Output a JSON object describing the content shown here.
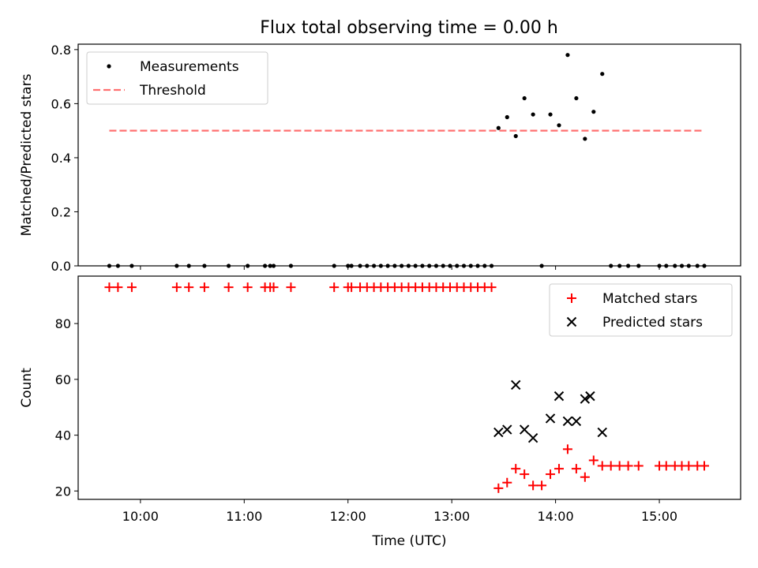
{
  "chart_data": [
    {
      "type": "scatter",
      "title": "Flux total observing time = 0.00 h",
      "xlabel": "",
      "ylabel": "Matched/Predicted stars",
      "xlim": [
        "09:24",
        "15:47"
      ],
      "ylim": [
        0,
        0.82
      ],
      "yticks": [
        "0.0",
        "0.2",
        "0.4",
        "0.6",
        "0.8"
      ],
      "xticks": [
        "10:00",
        "11:00",
        "12:00",
        "13:00",
        "14:00",
        "15:00"
      ],
      "legend": "upper-left",
      "grid": false,
      "series": [
        {
          "name": "Measurements",
          "marker": "dot",
          "color": "#000000",
          "points": [
            [
              "09:42",
              0
            ],
            [
              "09:47",
              0
            ],
            [
              "09:55",
              0
            ],
            [
              "10:21",
              0
            ],
            [
              "10:28",
              0
            ],
            [
              "10:37",
              0
            ],
            [
              "10:51",
              0
            ],
            [
              "11:02",
              0
            ],
            [
              "11:12",
              0
            ],
            [
              "11:15",
              0
            ],
            [
              "11:17",
              0
            ],
            [
              "11:27",
              0
            ],
            [
              "11:52",
              0
            ],
            [
              "12:00",
              0
            ],
            [
              "12:02",
              0
            ],
            [
              "12:07",
              0
            ],
            [
              "12:11",
              0
            ],
            [
              "12:15",
              0
            ],
            [
              "12:19",
              0
            ],
            [
              "12:23",
              0
            ],
            [
              "12:27",
              0
            ],
            [
              "12:31",
              0
            ],
            [
              "12:35",
              0
            ],
            [
              "12:39",
              0
            ],
            [
              "12:43",
              0
            ],
            [
              "12:47",
              0
            ],
            [
              "12:51",
              0
            ],
            [
              "12:55",
              0
            ],
            [
              "12:59",
              0
            ],
            [
              "13:03",
              0
            ],
            [
              "13:07",
              0
            ],
            [
              "13:11",
              0
            ],
            [
              "13:15",
              0
            ],
            [
              "13:19",
              0
            ],
            [
              "13:23",
              0
            ],
            [
              "13:27",
              0.51
            ],
            [
              "13:32",
              0.55
            ],
            [
              "13:37",
              0.48
            ],
            [
              "13:42",
              0.62
            ],
            [
              "13:47",
              0.56
            ],
            [
              "13:52",
              0
            ],
            [
              "13:57",
              0.56
            ],
            [
              "14:02",
              0.52
            ],
            [
              "14:07",
              0.78
            ],
            [
              "14:12",
              0.62
            ],
            [
              "14:17",
              0.47
            ],
            [
              "14:22",
              0.57
            ],
            [
              "14:27",
              0.71
            ],
            [
              "14:32",
              0
            ],
            [
              "14:37",
              0
            ],
            [
              "14:42",
              0
            ],
            [
              "14:48",
              0
            ],
            [
              "15:00",
              0
            ],
            [
              "15:04",
              0
            ],
            [
              "15:09",
              0
            ],
            [
              "15:13",
              0
            ],
            [
              "15:17",
              0
            ],
            [
              "15:22",
              0
            ],
            [
              "15:26",
              0
            ]
          ]
        },
        {
          "name": "Threshold",
          "type": "line",
          "style": "dashed",
          "color": "#ff7070",
          "points": [
            [
              "09:42",
              0.5
            ],
            [
              "15:26",
              0.5
            ]
          ]
        }
      ]
    },
    {
      "type": "scatter",
      "title": "",
      "xlabel": "Time (UTC)",
      "ylabel": "Count",
      "xlim": [
        "09:24",
        "15:47"
      ],
      "ylim": [
        17,
        97
      ],
      "yticks": [
        "20",
        "40",
        "60",
        "80"
      ],
      "xticks": [
        "10:00",
        "11:00",
        "12:00",
        "13:00",
        "14:00",
        "15:00"
      ],
      "legend": "upper-right",
      "grid": false,
      "series": [
        {
          "name": "Matched stars",
          "marker": "plus",
          "color": "#ff0000",
          "points": [
            [
              "09:42",
              93
            ],
            [
              "09:47",
              93
            ],
            [
              "09:55",
              93
            ],
            [
              "10:21",
              93
            ],
            [
              "10:28",
              93
            ],
            [
              "10:37",
              93
            ],
            [
              "10:51",
              93
            ],
            [
              "11:02",
              93
            ],
            [
              "11:12",
              93
            ],
            [
              "11:15",
              93
            ],
            [
              "11:17",
              93
            ],
            [
              "11:27",
              93
            ],
            [
              "11:52",
              93
            ],
            [
              "12:00",
              93
            ],
            [
              "12:02",
              93
            ],
            [
              "12:07",
              93
            ],
            [
              "12:11",
              93
            ],
            [
              "12:15",
              93
            ],
            [
              "12:19",
              93
            ],
            [
              "12:23",
              93
            ],
            [
              "12:27",
              93
            ],
            [
              "12:31",
              93
            ],
            [
              "12:35",
              93
            ],
            [
              "12:39",
              93
            ],
            [
              "12:43",
              93
            ],
            [
              "12:47",
              93
            ],
            [
              "12:51",
              93
            ],
            [
              "12:55",
              93
            ],
            [
              "12:59",
              93
            ],
            [
              "13:03",
              93
            ],
            [
              "13:07",
              93
            ],
            [
              "13:11",
              93
            ],
            [
              "13:15",
              93
            ],
            [
              "13:19",
              93
            ],
            [
              "13:23",
              93
            ],
            [
              "13:27",
              21
            ],
            [
              "13:32",
              23
            ],
            [
              "13:37",
              28
            ],
            [
              "13:42",
              26
            ],
            [
              "13:47",
              22
            ],
            [
              "13:52",
              22
            ],
            [
              "13:57",
              26
            ],
            [
              "14:02",
              28
            ],
            [
              "14:07",
              35
            ],
            [
              "14:12",
              28
            ],
            [
              "14:17",
              25
            ],
            [
              "14:22",
              31
            ],
            [
              "14:27",
              29
            ],
            [
              "14:32",
              29
            ],
            [
              "14:37",
              29
            ],
            [
              "14:42",
              29
            ],
            [
              "14:48",
              29
            ],
            [
              "15:00",
              29
            ],
            [
              "15:04",
              29
            ],
            [
              "15:09",
              29
            ],
            [
              "15:13",
              29
            ],
            [
              "15:17",
              29
            ],
            [
              "15:22",
              29
            ],
            [
              "15:26",
              29
            ]
          ]
        },
        {
          "name": "Predicted stars",
          "marker": "x",
          "color": "#000000",
          "points": [
            [
              "13:27",
              41
            ],
            [
              "13:32",
              42
            ],
            [
              "13:37",
              58
            ],
            [
              "13:42",
              42
            ],
            [
              "13:47",
              39
            ],
            [
              "13:57",
              46
            ],
            [
              "14:02",
              54
            ],
            [
              "14:07",
              45
            ],
            [
              "14:12",
              45
            ],
            [
              "14:17",
              53
            ],
            [
              "14:20",
              54
            ],
            [
              "14:27",
              41
            ]
          ]
        }
      ]
    }
  ]
}
